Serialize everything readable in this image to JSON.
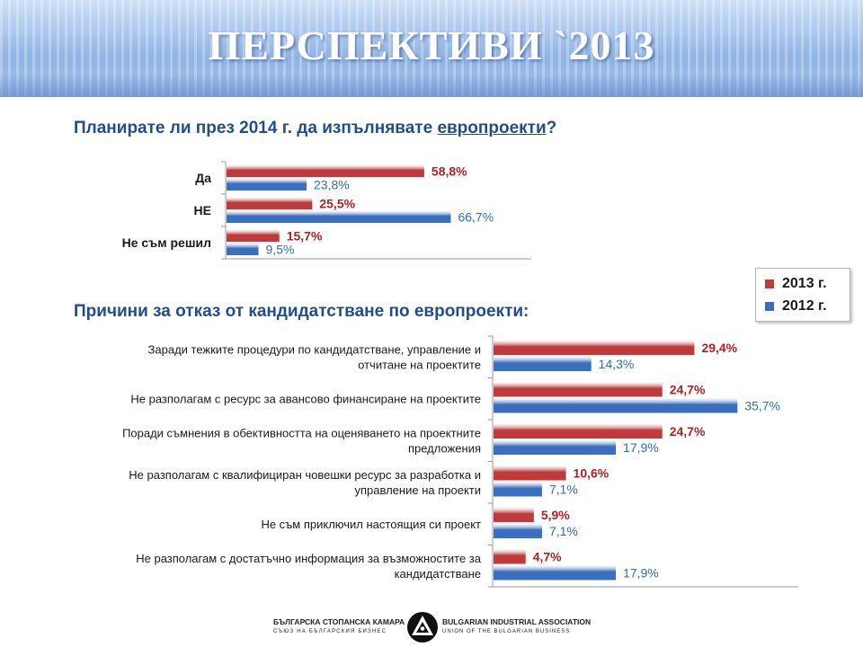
{
  "title": "ПЕРСПЕКТИВИ `2013",
  "question1": {
    "text": "Планирате ли през 2014 г. да изпълнявате ",
    "link": "европроекти",
    "end": "?"
  },
  "question2": "Причини за отказ от кандидатстване по европроекти:",
  "legend": [
    {
      "label": "2013 г.",
      "color": "#c0393b"
    },
    {
      "label": "2012 г.",
      "color": "#3a6fbf"
    }
  ],
  "colors": {
    "series_2013": "#c0393b",
    "series_2012": "#3a6fbf",
    "label_2013": "#b22024",
    "label_2012": "#2e6db3"
  },
  "chart_data": [
    {
      "type": "bar",
      "orientation": "horizontal",
      "categories": [
        "Да",
        "НЕ",
        "Не съм решил"
      ],
      "series": [
        {
          "name": "2013 г.",
          "values": [
            58.8,
            25.5,
            15.7
          ],
          "labels": [
            "58,8%",
            "25,5%",
            "15,7%"
          ]
        },
        {
          "name": "2012 г.",
          "values": [
            23.8,
            66.7,
            9.5
          ],
          "labels": [
            "23,8%",
            "66,7%",
            "9,5%"
          ]
        }
      ],
      "unit": "%",
      "xlim": [
        0,
        100
      ],
      "legend": "right"
    },
    {
      "type": "bar",
      "orientation": "horizontal",
      "categories": [
        [
          "Заради тежките процедури по кандидатстване, управление и",
          "отчитане на проектите"
        ],
        [
          "Не разполагам с ресурс за авансово финансиране на проектите"
        ],
        [
          "Поради съмнения в обективността на оценяването на проектните",
          "предложения"
        ],
        [
          "Не разполагам с квалифициран човешки ресурс за разработка и",
          "управление на проекти"
        ],
        [
          "Не съм приключил настоящия си проект"
        ],
        [
          "Не разполагам с достатъчно информация за възможностите за",
          "кандидатстване"
        ]
      ],
      "series": [
        {
          "name": "2013 г.",
          "values": [
            29.4,
            24.7,
            24.7,
            10.6,
            5.9,
            4.7
          ],
          "labels": [
            "29,4%",
            "24,7%",
            "24,7%",
            "10,6%",
            "5,9%",
            "4,7%"
          ]
        },
        {
          "name": "2012 г.",
          "values": [
            14.3,
            35.7,
            17.9,
            7.1,
            7.1,
            17.9
          ],
          "labels": [
            "14,3%",
            "35,7%",
            "17,9%",
            "7,1%",
            "7,1%",
            "17,9%"
          ]
        }
      ],
      "unit": "%",
      "xlim": [
        0,
        45
      ]
    }
  ],
  "footer": {
    "left_top": "БЪЛГАРСКА СТОПАНСКА КАМАРА",
    "left_bottom": "СЪЮЗ НА БЪЛГАРСКИЯ БИЗНЕС",
    "right_top": "BULGARIAN INDUSTRIAL ASSOCIATION",
    "right_bottom": "UNION OF THE BULGARIAN BUSINESS"
  }
}
